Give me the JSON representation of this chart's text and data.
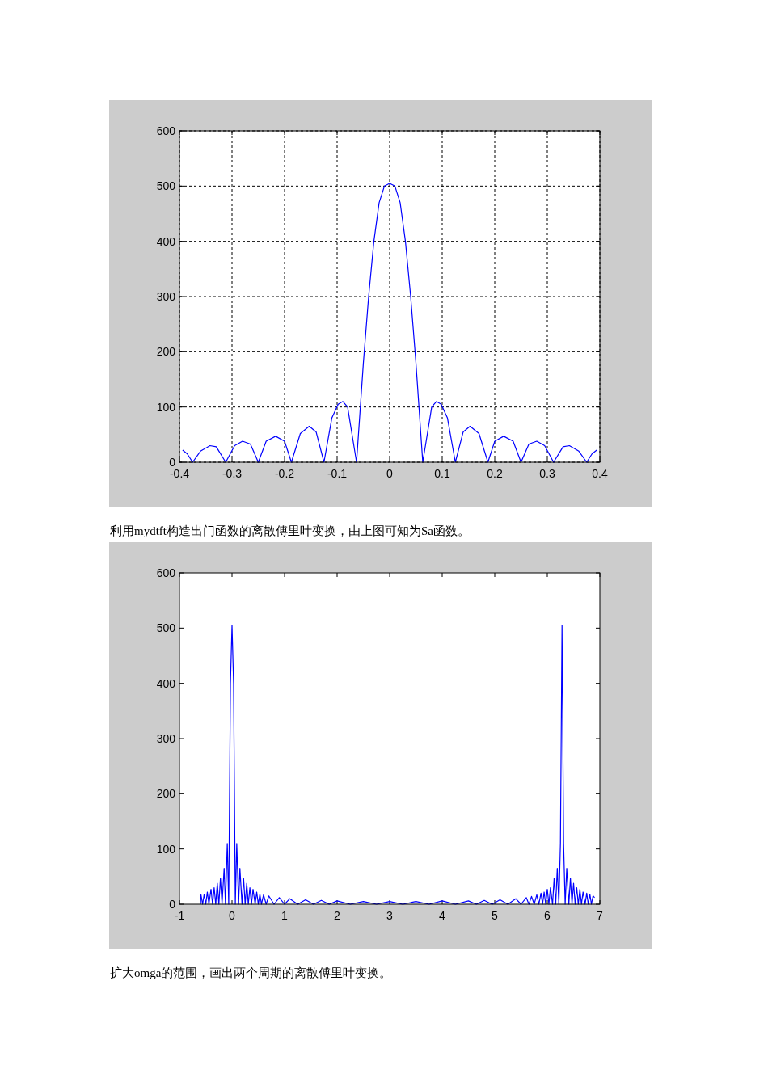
{
  "chart_data": [
    {
      "type": "line",
      "color": "#0000ff",
      "grid": true,
      "xlim": [
        -0.4,
        0.4
      ],
      "ylim": [
        0,
        600
      ],
      "xticks": [
        -0.4,
        -0.3,
        -0.2,
        -0.1,
        0,
        0.1,
        0.2,
        0.3,
        0.4
      ],
      "yticks": [
        0,
        100,
        200,
        300,
        400,
        500,
        600
      ],
      "x": [
        -0.394,
        -0.385,
        -0.375,
        -0.36,
        -0.342,
        -0.33,
        -0.312,
        -0.295,
        -0.28,
        -0.265,
        -0.25,
        -0.235,
        -0.217,
        -0.2,
        -0.187,
        -0.17,
        -0.153,
        -0.14,
        -0.125,
        -0.11,
        -0.098,
        -0.089,
        -0.08,
        -0.063,
        -0.05,
        -0.04,
        -0.03,
        -0.02,
        -0.01,
        0,
        0.01,
        0.02,
        0.03,
        0.04,
        0.05,
        0.063,
        0.08,
        0.089,
        0.098,
        0.11,
        0.125,
        0.14,
        0.153,
        0.17,
        0.187,
        0.2,
        0.217,
        0.235,
        0.25,
        0.265,
        0.28,
        0.295,
        0.312,
        0.33,
        0.342,
        0.36,
        0.375,
        0.385,
        0.394
      ],
      "values": [
        22,
        15,
        0,
        20,
        30,
        28,
        0,
        30,
        38,
        33,
        0,
        38,
        47,
        38,
        0,
        52,
        65,
        55,
        0,
        80,
        105,
        110,
        100,
        0,
        180,
        300,
        400,
        470,
        500,
        505,
        500,
        470,
        400,
        300,
        180,
        0,
        100,
        110,
        105,
        80,
        0,
        55,
        65,
        52,
        0,
        38,
        47,
        38,
        0,
        33,
        38,
        30,
        0,
        28,
        30,
        20,
        0,
        15,
        22
      ],
      "annotations": [
        "利用mydtft构造出门函数的离散傅里叶变换，由上图可知为Sa函数。"
      ]
    },
    {
      "type": "line",
      "color": "#0000ff",
      "grid": false,
      "xlim": [
        -1,
        7
      ],
      "ylim": [
        0,
        600
      ],
      "xticks": [
        -1,
        0,
        1,
        2,
        3,
        4,
        5,
        6,
        7
      ],
      "yticks": [
        0,
        100,
        200,
        300,
        400,
        500,
        600
      ],
      "x": [
        -0.6,
        -0.59,
        -0.56,
        -0.53,
        -0.5,
        -0.47,
        -0.44,
        -0.4,
        -0.37,
        -0.34,
        -0.31,
        -0.28,
        -0.25,
        -0.22,
        -0.19,
        -0.15,
        -0.125,
        -0.09,
        -0.063,
        -0.03,
        0,
        0.03,
        0.063,
        0.09,
        0.125,
        0.15,
        0.19,
        0.22,
        0.25,
        0.28,
        0.31,
        0.34,
        0.37,
        0.4,
        0.44,
        0.47,
        0.5,
        0.53,
        0.56,
        0.6,
        0.65,
        0.7,
        0.8,
        0.9,
        1.0,
        1.1,
        1.25,
        1.4,
        1.55,
        1.7,
        1.85,
        2.0,
        2.25,
        2.5,
        2.75,
        3.0,
        3.25,
        3.5,
        3.75,
        4.0,
        4.25,
        4.5,
        4.65,
        4.8,
        4.95,
        5.1,
        5.25,
        5.4,
        5.5,
        5.6,
        5.65,
        5.7,
        5.75,
        5.8,
        5.84,
        5.88,
        5.91,
        5.94,
        5.97,
        6.0,
        6.03,
        6.06,
        6.1,
        6.13,
        6.16,
        6.19,
        6.22,
        6.25,
        6.28,
        6.31,
        6.34,
        6.37,
        6.41,
        6.44,
        6.47,
        6.5,
        6.53,
        6.56,
        6.59,
        6.62,
        6.65,
        6.68,
        6.72,
        6.75,
        6.78,
        6.81,
        6.84,
        6.87,
        6.9
      ],
      "values": [
        0,
        17,
        0,
        18,
        0,
        22,
        0,
        27,
        0,
        30,
        0,
        38,
        0,
        47,
        0,
        65,
        0,
        110,
        0,
        400,
        505,
        400,
        0,
        110,
        0,
        65,
        0,
        47,
        0,
        38,
        0,
        30,
        0,
        27,
        0,
        22,
        0,
        18,
        0,
        17,
        0,
        15,
        0,
        12,
        0,
        10,
        0,
        8,
        0,
        7,
        0,
        6,
        0,
        5,
        0,
        5,
        0,
        5,
        0,
        6,
        0,
        6,
        0,
        7,
        0,
        8,
        0,
        10,
        0,
        12,
        0,
        14,
        0,
        17,
        0,
        20,
        0,
        22,
        0,
        27,
        0,
        30,
        0,
        47,
        0,
        65,
        0,
        110,
        505,
        110,
        0,
        65,
        0,
        47,
        0,
        38,
        0,
        30,
        0,
        27,
        0,
        22,
        0,
        20,
        0,
        18,
        0,
        15,
        12
      ],
      "annotations": [
        "扩大omga的范围，画出两个周期的离散傅里叶变换。"
      ]
    }
  ]
}
